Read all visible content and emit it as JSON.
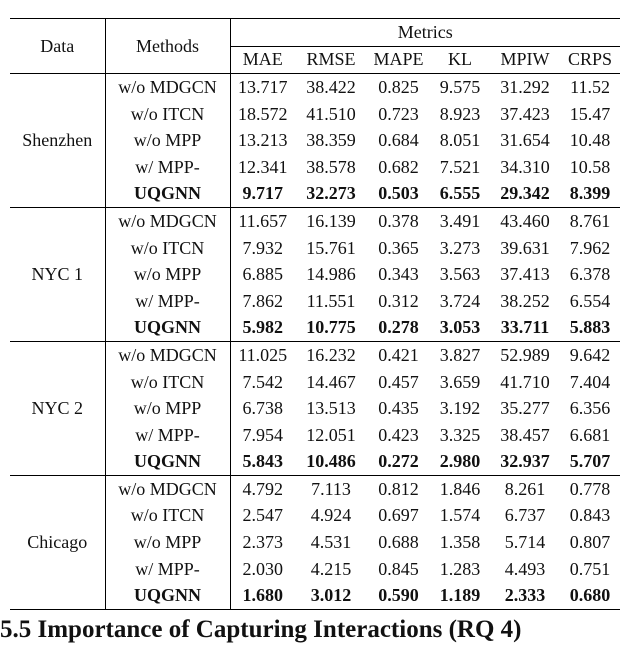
{
  "table": {
    "headers": {
      "data": "Data",
      "methods": "Methods",
      "metrics": "Metrics",
      "columns": [
        "MAE",
        "RMSE",
        "MAPE",
        "KL",
        "MPIW",
        "CRPS"
      ]
    },
    "groups": [
      {
        "name": "Shenzhen",
        "rows": [
          [
            "w/o MDGCN",
            "13.717",
            "38.422",
            "0.825",
            "9.575",
            "31.292",
            "11.52"
          ],
          [
            "w/o ITCN",
            "18.572",
            "41.510",
            "0.723",
            "8.923",
            "37.423",
            "15.47"
          ],
          [
            "w/o MPP",
            "13.213",
            "38.359",
            "0.684",
            "8.051",
            "31.654",
            "10.48"
          ],
          [
            "w/ MPP-",
            "12.341",
            "38.578",
            "0.682",
            "7.521",
            "34.310",
            "10.58"
          ],
          [
            "UQGNN",
            "9.717",
            "32.273",
            "0.503",
            "6.555",
            "29.342",
            "8.399"
          ]
        ]
      },
      {
        "name": "NYC 1",
        "rows": [
          [
            "w/o MDGCN",
            "11.657",
            "16.139",
            "0.378",
            "3.491",
            "43.460",
            "8.761"
          ],
          [
            "w/o ITCN",
            "7.932",
            "15.761",
            "0.365",
            "3.273",
            "39.631",
            "7.962"
          ],
          [
            "w/o MPP",
            "6.885",
            "14.986",
            "0.343",
            "3.563",
            "37.413",
            "6.378"
          ],
          [
            "w/ MPP-",
            "7.862",
            "11.551",
            "0.312",
            "3.724",
            "38.252",
            "6.554"
          ],
          [
            "UQGNN",
            "5.982",
            "10.775",
            "0.278",
            "3.053",
            "33.711",
            "5.883"
          ]
        ]
      },
      {
        "name": "NYC 2",
        "rows": [
          [
            "w/o MDGCN",
            "11.025",
            "16.232",
            "0.421",
            "3.827",
            "52.989",
            "9.642"
          ],
          [
            "w/o ITCN",
            "7.542",
            "14.467",
            "0.457",
            "3.659",
            "41.710",
            "7.404"
          ],
          [
            "w/o MPP",
            "6.738",
            "13.513",
            "0.435",
            "3.192",
            "35.277",
            "6.356"
          ],
          [
            "w/ MPP-",
            "7.954",
            "12.051",
            "0.423",
            "3.325",
            "38.457",
            "6.681"
          ],
          [
            "UQGNN",
            "5.843",
            "10.486",
            "0.272",
            "2.980",
            "32.937",
            "5.707"
          ]
        ]
      },
      {
        "name": "Chicago",
        "rows": [
          [
            "w/o MDGCN",
            "4.792",
            "7.113",
            "0.812",
            "1.846",
            "8.261",
            "0.778"
          ],
          [
            "w/o ITCN",
            "2.547",
            "4.924",
            "0.697",
            "1.574",
            "6.737",
            "0.843"
          ],
          [
            "w/o MPP",
            "2.373",
            "4.531",
            "0.688",
            "1.358",
            "5.714",
            "0.807"
          ],
          [
            "w/ MPP-",
            "2.030",
            "4.215",
            "0.845",
            "1.283",
            "4.493",
            "0.751"
          ],
          [
            "UQGNN",
            "1.680",
            "3.012",
            "0.590",
            "1.189",
            "2.333",
            "0.680"
          ]
        ]
      }
    ]
  },
  "section_heading": "5.5 Importance of Capturing Interactions (RQ 4)"
}
